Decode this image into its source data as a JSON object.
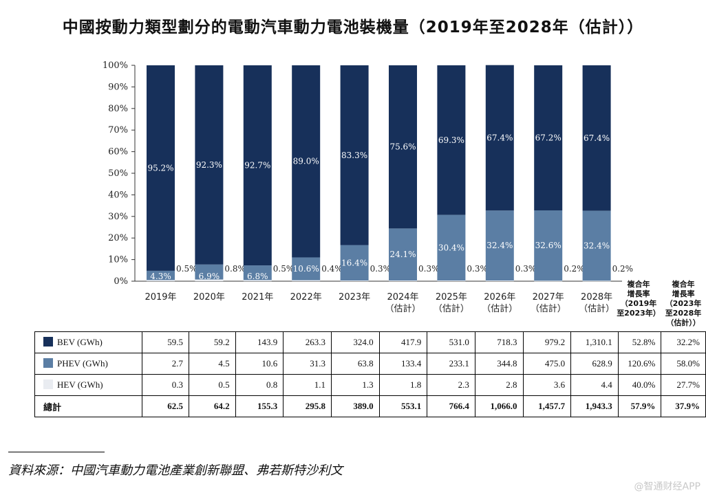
{
  "title": "中國按動力類型劃分的電動汽車動力電池裝機量（2019年至2028年（估計））",
  "chart_data": {
    "type": "bar",
    "stacked": true,
    "title": "中國按動力類型劃分的電動汽車動力電池裝機量（2019年至2028年（估計））",
    "ylim": [
      0,
      100
    ],
    "y_ticks": [
      "0%",
      "10%",
      "20%",
      "30%",
      "40%",
      "50%",
      "60%",
      "70%",
      "80%",
      "90%",
      "100%"
    ],
    "categories": [
      {
        "year": "2019年",
        "note": ""
      },
      {
        "year": "2020年",
        "note": ""
      },
      {
        "year": "2021年",
        "note": ""
      },
      {
        "year": "2022年",
        "note": ""
      },
      {
        "year": "2023年",
        "note": ""
      },
      {
        "year": "2024年",
        "note": "（估計）"
      },
      {
        "year": "2025年",
        "note": "（估計）"
      },
      {
        "year": "2026年",
        "note": "（估計）"
      },
      {
        "year": "2027年",
        "note": "（估計）"
      },
      {
        "year": "2028年",
        "note": "（估計）"
      }
    ],
    "series": [
      {
        "name": "HEV",
        "values": [
          0.5,
          0.8,
          0.5,
          0.4,
          0.3,
          0.3,
          0.3,
          0.3,
          0.2,
          0.2
        ],
        "labels": [
          "0.5%",
          "0.8%",
          "0.5%",
          "0.4%",
          "0.3%",
          "0.3%",
          "0.3%",
          "0.3%",
          "0.2%",
          "0.2%"
        ],
        "color": "#e9ecf1"
      },
      {
        "name": "PHEV",
        "values": [
          4.3,
          6.9,
          6.8,
          10.6,
          16.4,
          24.1,
          30.4,
          32.4,
          32.6,
          32.4
        ],
        "labels": [
          "4.3%",
          "6.9%",
          "6.8%",
          "10.6%",
          "16.4%",
          "24.1%",
          "30.4%",
          "32.4%",
          "32.6%",
          "32.4%"
        ],
        "color": "#5b7ea4"
      },
      {
        "name": "BEV",
        "values": [
          95.2,
          92.3,
          92.7,
          89.0,
          83.3,
          75.6,
          69.3,
          67.4,
          67.2,
          67.4
        ],
        "labels": [
          "95.2%",
          "92.3%",
          "92.7%",
          "89.0%",
          "83.3%",
          "75.6%",
          "69.3%",
          "67.4%",
          "67.2%",
          "67.4%"
        ],
        "color": "#17305a"
      }
    ],
    "cagr_headers": [
      [
        "複合年",
        "增長率",
        "（2019年",
        "至2023年）"
      ],
      [
        "複合年",
        "增長率",
        "（2023年",
        "至2028年",
        "（估計））"
      ]
    ]
  },
  "table": {
    "rows": [
      {
        "label": "BEV (GWh)",
        "color": "#17305a",
        "values": [
          "59.5",
          "59.2",
          "143.9",
          "263.3",
          "324.0",
          "417.9",
          "531.0",
          "718.3",
          "979.2",
          "1,310.1",
          "52.8%",
          "32.2%"
        ]
      },
      {
        "label": "PHEV (GWh)",
        "color": "#5b7ea4",
        "values": [
          "2.7",
          "4.5",
          "10.6",
          "31.3",
          "63.8",
          "133.4",
          "233.1",
          "344.8",
          "475.0",
          "628.9",
          "120.6%",
          "58.0%"
        ]
      },
      {
        "label": "HEV (GWh)",
        "color": "#e9ecf1",
        "values": [
          "0.3",
          "0.5",
          "0.8",
          "1.1",
          "1.3",
          "1.8",
          "2.3",
          "2.8",
          "3.6",
          "4.4",
          "40.0%",
          "27.7%"
        ]
      },
      {
        "label": "總計",
        "color": "",
        "values": [
          "62.5",
          "64.2",
          "155.3",
          "295.8",
          "389.0",
          "553.1",
          "766.4",
          "1,066.0",
          "1,457.7",
          "1,943.3",
          "57.9%",
          "37.9%"
        ]
      }
    ]
  },
  "source": "資料來源：中國汽車動力電池產業創新聯盟、弗若斯特沙利文",
  "watermark": "@智通财经APP"
}
